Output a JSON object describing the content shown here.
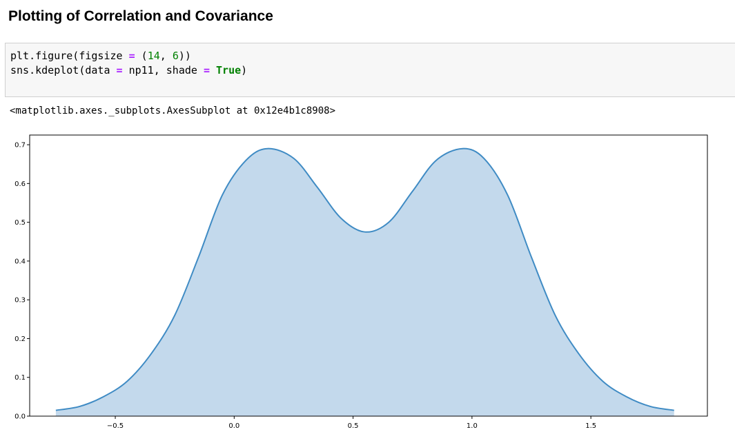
{
  "notebook": {
    "heading": "Plotting of Correlation and Covariance",
    "code_cell": {
      "line1": {
        "pre": "plt.figure(figsize ",
        "op": "=",
        "mid": " (",
        "num1": "14",
        "sep": ", ",
        "num2": "6",
        "post": "))"
      },
      "line2": {
        "pre": "sns.kdeplot(data ",
        "op1": "=",
        "mid": " np11, shade ",
        "op2": "=",
        "sp": " ",
        "kw": "True",
        "post": ")"
      }
    },
    "output_text": "<matplotlib.axes._subplots.AxesSubplot at 0x12e4b1c8908>"
  },
  "colors": {
    "line": "#3f8bc4",
    "fill": "#c3d9ec",
    "axes": "#000000"
  },
  "chart_data": {
    "type": "area",
    "title": "",
    "xlabel": "",
    "ylabel": "",
    "xlim": [
      -0.86,
      1.99
    ],
    "ylim": [
      0.0,
      0.725
    ],
    "xticks": [
      -0.5,
      0.0,
      0.5,
      1.0,
      1.5
    ],
    "xtick_labels": [
      "−0.5",
      "0.0",
      "0.5",
      "1.0",
      "1.5"
    ],
    "yticks": [
      0.0,
      0.1,
      0.2,
      0.3,
      0.4,
      0.5,
      0.6,
      0.7
    ],
    "ytick_labels": [
      "0.0",
      "0.1",
      "0.2",
      "0.3",
      "0.4",
      "0.5",
      "0.6",
      "0.7"
    ],
    "grid": false,
    "legend": "none",
    "series": [
      {
        "x": [
          -0.75,
          -0.65,
          -0.55,
          -0.45,
          -0.35,
          -0.25,
          -0.15,
          -0.05,
          0.05,
          0.14,
          0.25,
          0.35,
          0.45,
          0.55,
          0.65,
          0.75,
          0.85,
          0.96,
          1.05,
          1.15,
          1.25,
          1.35,
          1.45,
          1.55,
          1.65,
          1.75,
          1.85
        ],
        "y": [
          0.015,
          0.025,
          0.05,
          0.09,
          0.16,
          0.26,
          0.41,
          0.57,
          0.66,
          0.69,
          0.665,
          0.59,
          0.51,
          0.475,
          0.5,
          0.58,
          0.66,
          0.69,
          0.665,
          0.57,
          0.41,
          0.26,
          0.16,
          0.09,
          0.05,
          0.025,
          0.015
        ]
      }
    ]
  }
}
